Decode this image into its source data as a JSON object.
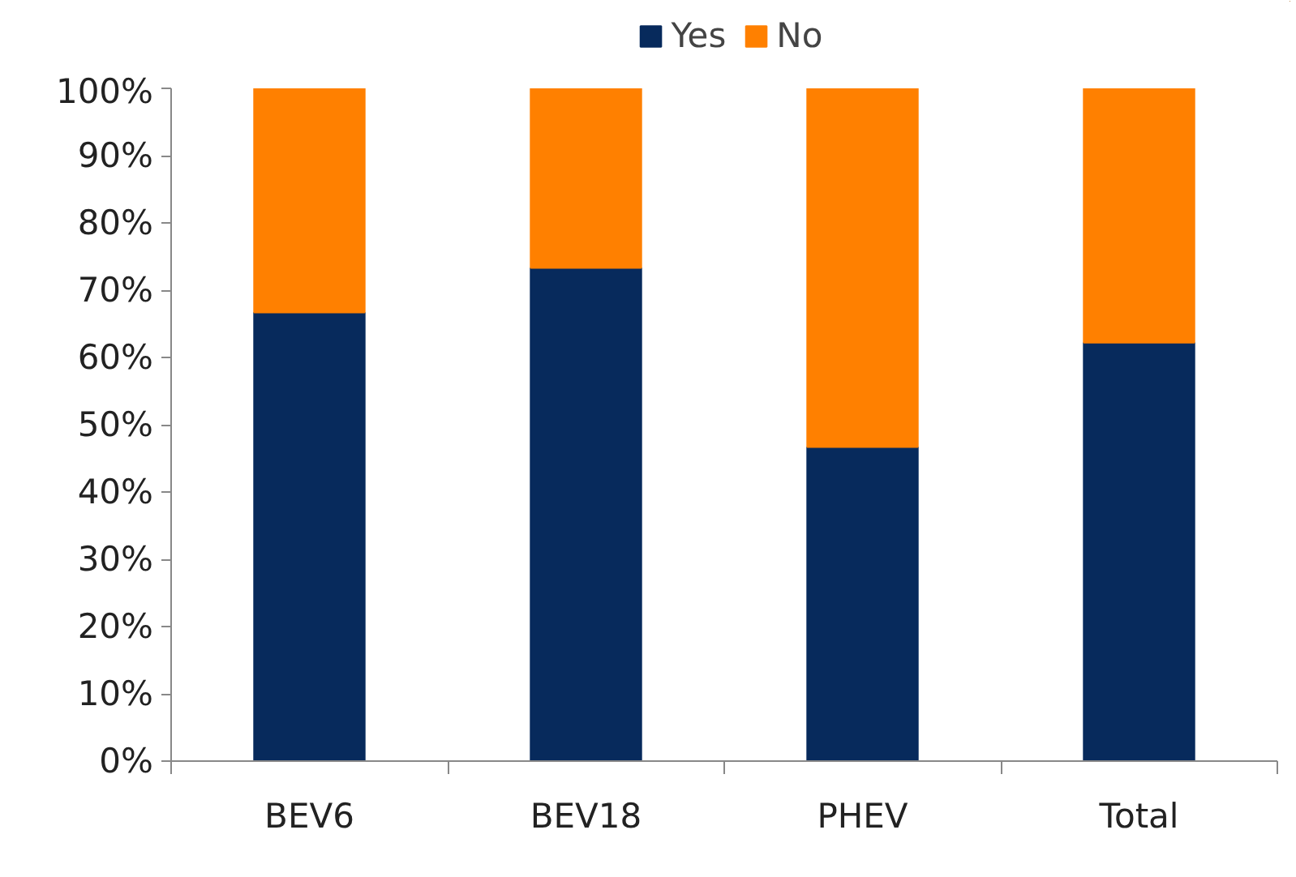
{
  "chart_data": {
    "type": "bar",
    "stacked": true,
    "categories": [
      "BEV6",
      "BEV18",
      "PHEV",
      "Total"
    ],
    "series": [
      {
        "name": "Yes",
        "color": "#072a5c",
        "values": [
          66.7,
          73.3,
          46.7,
          62.2
        ]
      },
      {
        "name": "No",
        "color": "#ff8000",
        "values": [
          33.3,
          26.7,
          53.3,
          37.8
        ]
      }
    ],
    "ylim": [
      0,
      100
    ],
    "yticks": [
      {
        "value": 0,
        "label": "0%"
      },
      {
        "value": 10,
        "label": "10%"
      },
      {
        "value": 20,
        "label": "20%"
      },
      {
        "value": 30,
        "label": "30%"
      },
      {
        "value": 40,
        "label": "40%"
      },
      {
        "value": 50,
        "label": "50%"
      },
      {
        "value": 60,
        "label": "60%"
      },
      {
        "value": 70,
        "label": "70%"
      },
      {
        "value": 80,
        "label": "80%"
      },
      {
        "value": 90,
        "label": "90%"
      },
      {
        "value": 100,
        "label": "100%"
      }
    ],
    "grid": false,
    "legend": "top"
  }
}
